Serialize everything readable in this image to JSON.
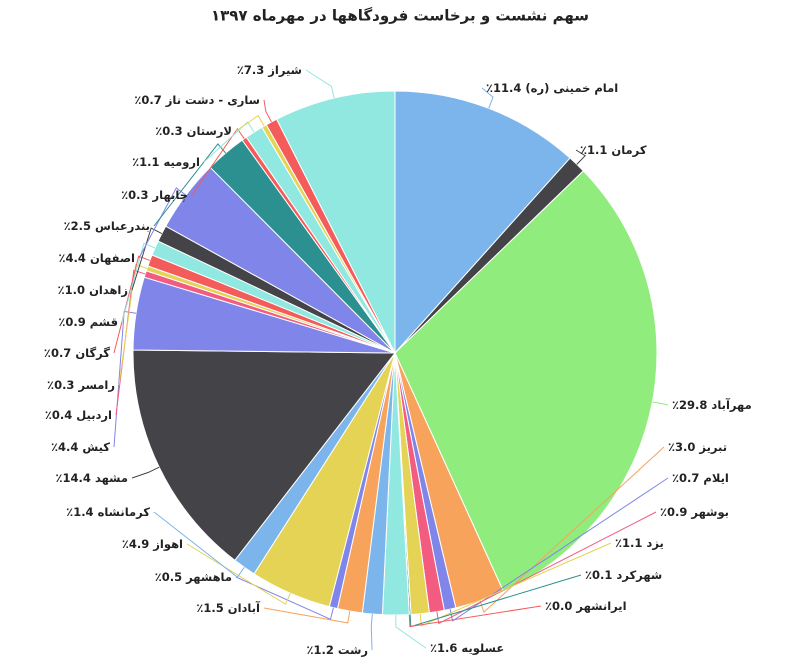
{
  "chart_data": {
    "type": "pie",
    "title": "سهم نشست و برخاست فرودگاهها در مهرماه ۱۳۹۷",
    "categories": [
      "امام خمینی (ره)",
      "کرمان",
      "مهرآباد",
      "تبریز",
      "ایلام",
      "بوشهر",
      "یزد",
      "شهرکرد",
      "ایرانشهر",
      "عسلویه",
      "رشت",
      "آبادان",
      "ماهشهر",
      "اهواز",
      "کرمانشاه",
      "مشهد",
      "کیش",
      "اردبیل",
      "رامسر",
      "گرگان",
      "قشم",
      "زاهدان",
      "اصفهان",
      "بندرعباس",
      "چابهار",
      "ارومیه",
      "لارستان",
      "ساری - دشت ناز",
      "شیراز"
    ],
    "values": [
      11.4,
      1.1,
      29.8,
      3.0,
      0.7,
      0.9,
      1.1,
      0.1,
      0.0,
      1.6,
      1.2,
      1.5,
      0.5,
      4.9,
      1.4,
      14.4,
      4.4,
      0.4,
      0.3,
      0.7,
      0.9,
      1.0,
      4.4,
      2.5,
      0.3,
      1.1,
      0.3,
      0.7,
      7.3
    ],
    "value_labels": [
      "11.4٪",
      "1.1٪",
      "29.8٪",
      "3.0٪",
      "0.7٪",
      "0.9٪",
      "1.1٪",
      "0.1٪",
      "0.0٪",
      "1.6٪",
      "1.2٪",
      "1.5٪",
      "0.5٪",
      "4.9٪",
      "1.4٪",
      "14.4٪",
      "4.4٪",
      "0.4٪",
      "0.3٪",
      "0.7٪",
      "0.9٪",
      "1.0٪",
      "4.4٪",
      "2.5٪",
      "0.3٪",
      "1.1٪",
      "0.3٪",
      "0.7٪",
      "7.3٪"
    ],
    "colors": [
      "#7cb5ec",
      "#434348",
      "#90ed7d",
      "#f7a35c",
      "#8085e9",
      "#f15c80",
      "#e4d354",
      "#2b908f",
      "#f45b5b",
      "#91e8e1",
      "#7cb5ec",
      "#f7a35c",
      "#8085e9",
      "#e4d354",
      "#7cb5ec",
      "#434348",
      "#8085e9",
      "#f15c80",
      "#e4d354",
      "#f45b5b",
      "#91e8e1",
      "#434348",
      "#8085e9",
      "#2b908f",
      "#f45b5b",
      "#91e8e1",
      "#e4d354",
      "#f45b5b",
      "#91e8e1"
    ]
  }
}
